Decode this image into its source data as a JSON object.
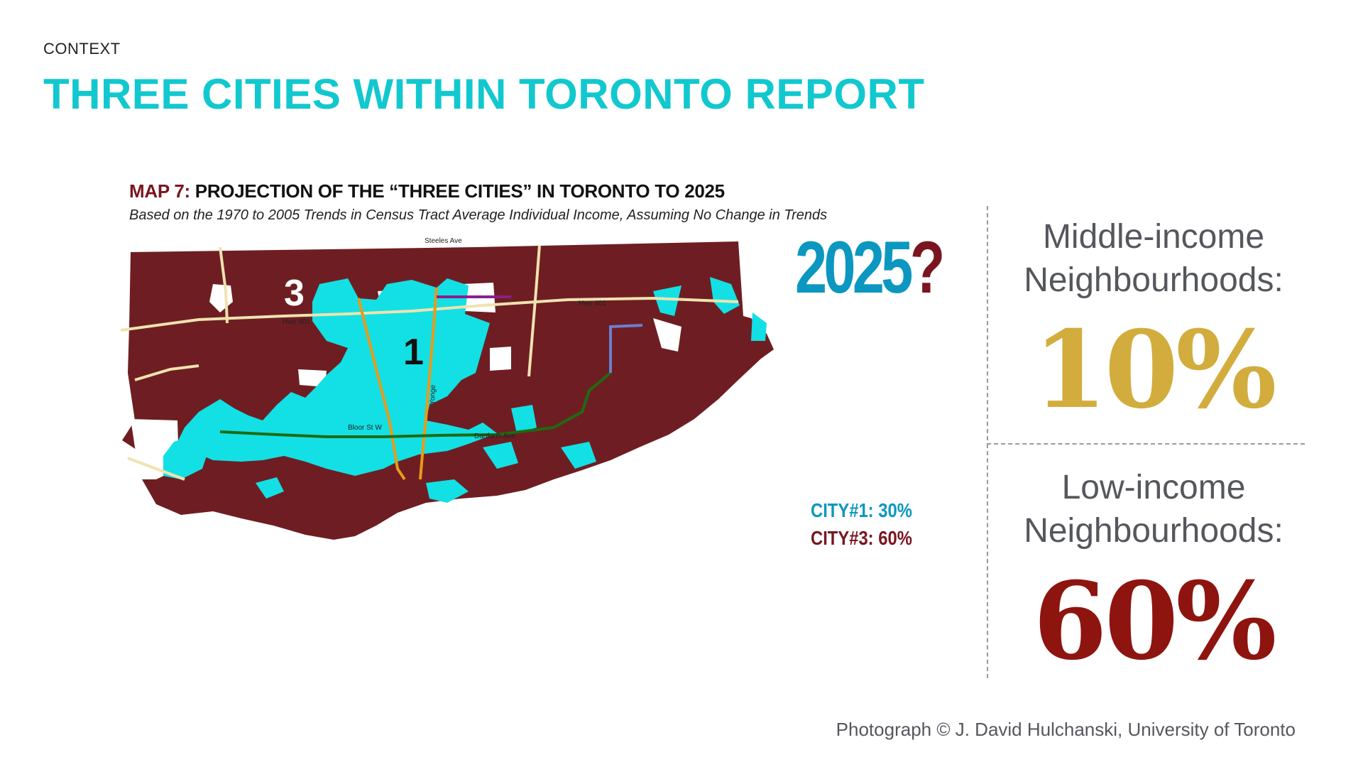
{
  "slide": {
    "kicker": "CONTEXT",
    "title": "THREE CITIES WITHIN TORONTO REPORT"
  },
  "map": {
    "title_prefix": "MAP 7:",
    "title_rest": " PROJECTION OF THE “THREE CITIES” IN TORONTO TO 2025",
    "subtitle": "Based on the 1970 to 2005 Trends in Census Tract Average Individual Income, Assuming No Change in Trends",
    "city1_marker": "1",
    "city3_marker": "3",
    "road_labels": [
      "Steeles Ave",
      "Hwy 401",
      "Hwy 401",
      "Bloor St W",
      "Danforth Ave",
      "Yonge"
    ],
    "colors": {
      "city1": "#13e0e4",
      "city3": "#6e1e22",
      "highway": "#efe3b0",
      "subway_yonge": "#e89a1a",
      "subway_bloor": "#1d6b12",
      "subway_sheppard": "#8b1f8a",
      "srt": "#6b7fd0"
    }
  },
  "projection": {
    "year": "2025",
    "question_mark": "?",
    "city1_stat": "CITY#1: 30%",
    "city3_stat": "CITY#3: 60%"
  },
  "stats": {
    "middle_label_line1": "Middle-income",
    "middle_label_line2": "Neighbourhoods:",
    "middle_value": "10%",
    "low_label_line1": "Low-income",
    "low_label_line2": "Neighbourhoods:",
    "low_value": "60%"
  },
  "credit": "Photograph © J. David Hulchanski, University of Toronto"
}
